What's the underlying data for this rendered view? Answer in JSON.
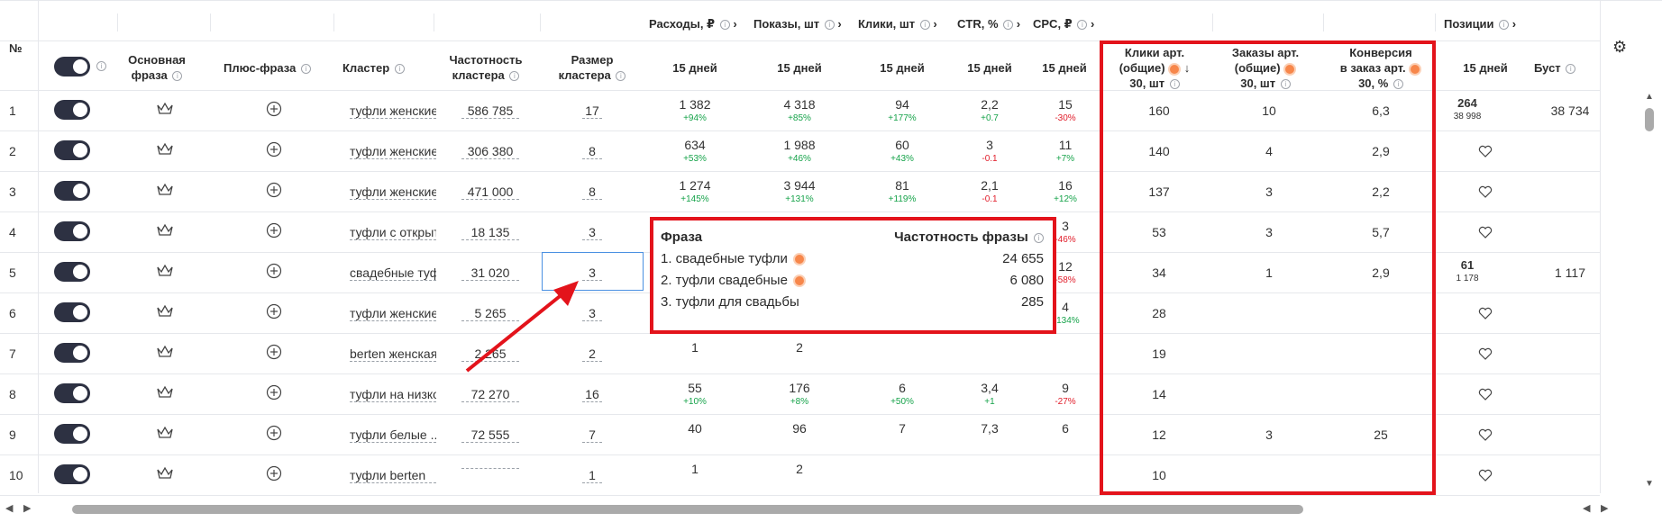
{
  "header": {
    "num": "№",
    "main_phrase_1": "Основная",
    "main_phrase_2": "фраза",
    "plus_phrase": "Плюс-фраза",
    "cluster": "Кластер",
    "freq_1": "Частотность",
    "freq_2": "кластера",
    "size_1": "Размер",
    "size_2": "кластера",
    "groups": {
      "spend": "Расходы, ₽",
      "impressions": "Показы, шт",
      "clicks": "Клики, шт",
      "ctr": "CTR, %",
      "cpc": "CPC, ₽",
      "positions": "Позиции"
    },
    "period": "15 дней",
    "art_clicks": [
      "Клики арт.",
      "(общие)",
      "30, шт"
    ],
    "art_orders": [
      "Заказы арт.",
      "(общие)",
      "30, шт"
    ],
    "conversion": [
      "Конверсия",
      "в заказ арт.",
      "30, %"
    ],
    "boost": "Буст"
  },
  "rows": [
    {
      "n": "1",
      "cluster": "туфли женские",
      "freq": "586 785",
      "size": "17",
      "spend": "1 382",
      "spend_d": "+94%",
      "imp": "4 318",
      "imp_d": "+85%",
      "clicks": "94",
      "clicks_d": "+177%",
      "ctr": "2,2",
      "ctr_d": "+0.7",
      "cpc": "15",
      "cpc_d": "-30%",
      "art_clicks": "160",
      "art_orders": "10",
      "conv": "6,3",
      "pos": "264",
      "pos_sub": "38 998",
      "boost": "38 734"
    },
    {
      "n": "2",
      "cluster": "туфли женские",
      "freq": "306 380",
      "size": "8",
      "spend": "634",
      "spend_d": "+53%",
      "imp": "1 988",
      "imp_d": "+46%",
      "clicks": "60",
      "clicks_d": "+43%",
      "ctr": "3",
      "ctr_d": "-0.1",
      "cpc": "11",
      "cpc_d": "+7%",
      "art_clicks": "140",
      "art_orders": "4",
      "conv": "2,9",
      "pos": "",
      "pos_sub": "",
      "boost": ""
    },
    {
      "n": "3",
      "cluster": "туфли женские",
      "freq": "471 000",
      "size": "8",
      "spend": "1 274",
      "spend_d": "+145%",
      "imp": "3 944",
      "imp_d": "+131%",
      "clicks": "81",
      "clicks_d": "+119%",
      "ctr": "2,1",
      "ctr_d": "-0.1",
      "cpc": "16",
      "cpc_d": "+12%",
      "art_clicks": "137",
      "art_orders": "3",
      "conv": "2,2",
      "pos": "",
      "pos_sub": "",
      "boost": ""
    },
    {
      "n": "4",
      "cluster": "туфли с открыт",
      "freq": "18 135",
      "size": "3",
      "spend": "",
      "spend_d": "",
      "imp": "",
      "imp_d": "",
      "clicks": "",
      "clicks_d": "",
      "ctr": "",
      "ctr_d": "",
      "cpc": "3",
      "cpc_d": "-46%",
      "art_clicks": "53",
      "art_orders": "3",
      "conv": "5,7",
      "pos": "",
      "pos_sub": "",
      "boost": ""
    },
    {
      "n": "5",
      "cluster": "свадебные туфли",
      "freq": "31 020",
      "size": "3",
      "spend": "",
      "spend_d": "",
      "imp": "",
      "imp_d": "",
      "clicks": "",
      "clicks_d": "",
      "ctr": "",
      "ctr_d": "",
      "cpc": "12",
      "cpc_d": "-58%",
      "art_clicks": "34",
      "art_orders": "1",
      "conv": "2,9",
      "pos": "61",
      "pos_sub": "1 178",
      "boost": "1 117"
    },
    {
      "n": "6",
      "cluster": "туфли женские",
      "freq": "5 265",
      "size": "3",
      "spend": "",
      "spend_d": "",
      "imp": "",
      "imp_d": "",
      "clicks": "",
      "clicks_d": "",
      "ctr": "",
      "ctr_d": "",
      "cpc": "4",
      "cpc_d": "+134%",
      "art_clicks": "28",
      "art_orders": "",
      "conv": "",
      "pos": "",
      "pos_sub": "",
      "boost": ""
    },
    {
      "n": "7",
      "cluster": "berten женская",
      "freq": "2 265",
      "size": "2",
      "spend": "1",
      "spend_d": "",
      "imp": "2",
      "imp_d": "",
      "clicks": "",
      "clicks_d": "",
      "ctr": "",
      "ctr_d": "",
      "cpc": "",
      "cpc_d": "",
      "art_clicks": "19",
      "art_orders": "",
      "conv": "",
      "pos": "",
      "pos_sub": "",
      "boost": ""
    },
    {
      "n": "8",
      "cluster": "туфли на низко",
      "freq": "72 270",
      "size": "16",
      "spend": "55",
      "spend_d": "+10%",
      "imp": "176",
      "imp_d": "+8%",
      "clicks": "6",
      "clicks_d": "+50%",
      "ctr": "3,4",
      "ctr_d": "+1",
      "cpc": "9",
      "cpc_d": "-27%",
      "art_clicks": "14",
      "art_orders": "",
      "conv": "",
      "pos": "",
      "pos_sub": "",
      "boost": ""
    },
    {
      "n": "9",
      "cluster": "туфли белые ..",
      "freq": "72 555",
      "size": "7",
      "spend": "40",
      "spend_d": "",
      "imp": "96",
      "imp_d": "",
      "clicks": "7",
      "clicks_d": "",
      "ctr": "7,3",
      "ctr_d": "",
      "cpc": "6",
      "cpc_d": "",
      "art_clicks": "12",
      "art_orders": "3",
      "conv": "25",
      "pos": "",
      "pos_sub": "",
      "boost": ""
    },
    {
      "n": "10",
      "cluster": "туфли berten",
      "freq": "",
      "size": "1",
      "spend": "1",
      "spend_d": "",
      "imp": "2",
      "imp_d": "",
      "clicks": "",
      "clicks_d": "",
      "ctr": "",
      "ctr_d": "",
      "cpc": "",
      "cpc_d": "",
      "art_clicks": "10",
      "art_orders": "",
      "conv": "",
      "pos": "",
      "pos_sub": "",
      "boost": ""
    }
  ],
  "popup": {
    "title_left": "Фраза",
    "title_right": "Частотность фразы",
    "items": [
      {
        "phrase": "1. свадебные туфли",
        "freq": "24 655"
      },
      {
        "phrase": "2. туфли свадебные",
        "freq": "6 080"
      },
      {
        "phrase": "3. туфли для свадьбы",
        "freq": "285"
      }
    ]
  },
  "colors": {
    "highlight": "#e3131b",
    "toggle": "#2d3142",
    "positive": "#16a34a",
    "negative": "#e11d2a",
    "dot": "#f7874b"
  }
}
